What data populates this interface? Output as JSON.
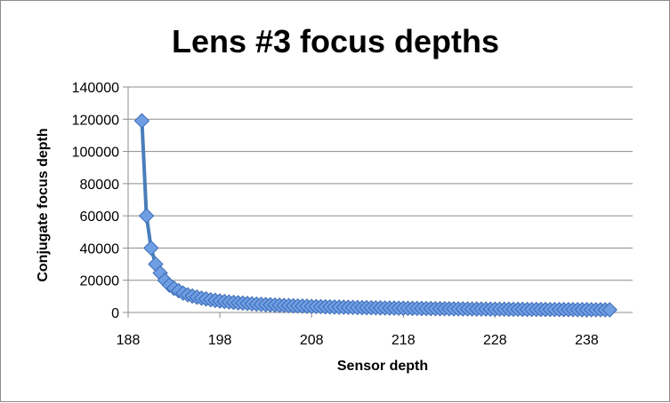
{
  "chart_data": {
    "type": "scatter",
    "title": "Lens #3 focus depths",
    "xlabel": "Sensor depth",
    "ylabel": "Conjugate focus depth",
    "xlim": [
      188,
      243
    ],
    "ylim": [
      0,
      140000
    ],
    "xticks": [
      "188",
      "198",
      "208",
      "218",
      "228",
      "238"
    ],
    "yticks": [
      "0",
      "20000",
      "40000",
      "60000",
      "80000",
      "100000",
      "120000",
      "140000"
    ],
    "grid": true,
    "legend": "none",
    "colors": {
      "line": "#4a7ebb",
      "marker_fill": "#6f9ee3",
      "marker_stroke": "#3a6ab5"
    },
    "series": [
      {
        "x": [
          189.5,
          190,
          190.5,
          191,
          191.5,
          192,
          192.5,
          193,
          193.5,
          194,
          194.5,
          195,
          195.5,
          196,
          196.5,
          197,
          197.5,
          198,
          198.5,
          199,
          199.5,
          200,
          200.5,
          201,
          201.5,
          202,
          202.5,
          203,
          203.5,
          204,
          204.5,
          205,
          205.5,
          206,
          206.5,
          207,
          207.5,
          208,
          208.5,
          209,
          209.5,
          210,
          210.5,
          211,
          211.5,
          212,
          212.5,
          213,
          213.5,
          214,
          214.5,
          215,
          215.5,
          216,
          216.5,
          217,
          217.5,
          218,
          218.5,
          219,
          219.5,
          220,
          220.5,
          221,
          221.5,
          222,
          222.5,
          223,
          223.5,
          224,
          224.5,
          225,
          225.5,
          226,
          226.5,
          227,
          227.5,
          228,
          228.5,
          229,
          229.5,
          230,
          230.5,
          231,
          231.5,
          232,
          232.5,
          233,
          233.5,
          234,
          234.5,
          235,
          235.5,
          236,
          236.5,
          237,
          237.5,
          238,
          238.5,
          239,
          239.5,
          240,
          240.5
        ],
        "y": [
          119000,
          60000,
          40000,
          30000,
          24500,
          20000,
          17000,
          15000,
          13500,
          12000,
          11000,
          10200,
          9500,
          8900,
          8400,
          7900,
          7500,
          7100,
          6800,
          6500,
          6250,
          6000,
          5800,
          5600,
          5400,
          5200,
          5050,
          4900,
          4750,
          4600,
          4480,
          4360,
          4250,
          4140,
          4040,
          3940,
          3850,
          3760,
          3680,
          3600,
          3520,
          3450,
          3380,
          3310,
          3250,
          3190,
          3130,
          3070,
          3020,
          2970,
          2920,
          2870,
          2820,
          2780,
          2740,
          2700,
          2660,
          2620,
          2580,
          2545,
          2510,
          2475,
          2440,
          2410,
          2380,
          2350,
          2320,
          2290,
          2260,
          2235,
          2210,
          2185,
          2160,
          2135,
          2110,
          2090,
          2070,
          2050,
          2030,
          2010,
          1990,
          1970,
          1950,
          1930,
          1910,
          1895,
          1880,
          1865,
          1850,
          1835,
          1820,
          1805,
          1790,
          1775,
          1760,
          1745,
          1730,
          1715,
          1700,
          1688,
          1676,
          1664,
          1652
        ]
      }
    ]
  }
}
